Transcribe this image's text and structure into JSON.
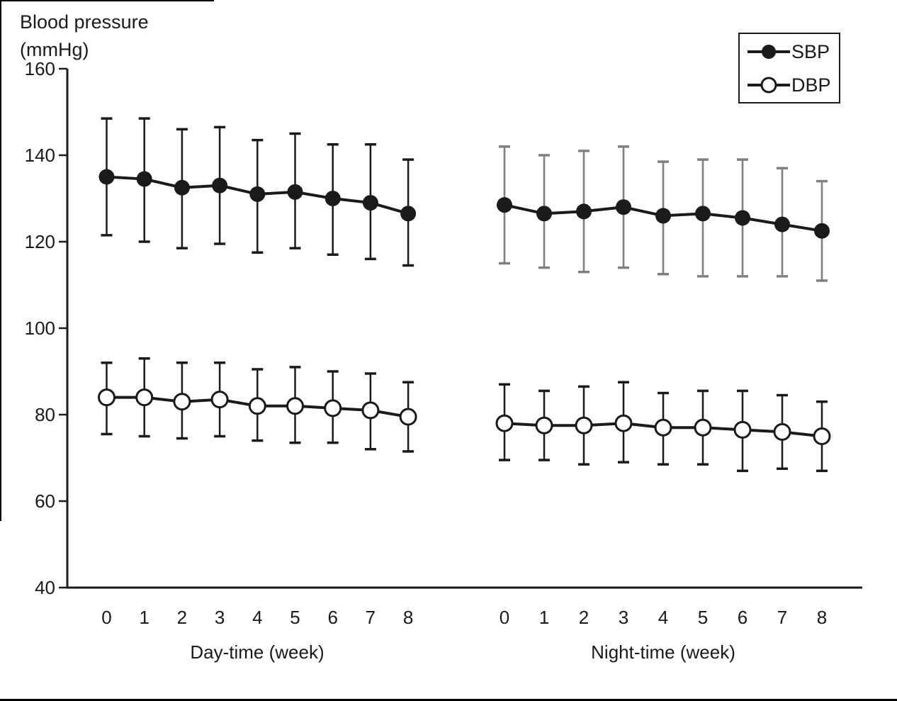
{
  "colors": {
    "ink": "#1a1a1a",
    "night_sbp_errbar": "#7f7f7f",
    "background": "#ffffff",
    "open_marker_fill": "#ffffff"
  },
  "chart_data": {
    "type": "line",
    "title": "Blood pressure (mmHg)",
    "ylabel_lines": [
      "Blood pressure",
      "(mmHg)"
    ],
    "y_axis": {
      "min": 40,
      "max": 160,
      "tick_step": 20,
      "ticks": [
        160,
        140,
        120,
        100,
        80,
        60,
        40
      ]
    },
    "x": [
      0,
      1,
      2,
      3,
      4,
      5,
      6,
      7,
      8
    ],
    "grid": "off",
    "legend_position": "top-right",
    "legend": [
      {
        "label": "SBP",
        "marker": "filled-circle"
      },
      {
        "label": "DBP",
        "marker": "open-circle"
      }
    ],
    "error_bars": "sd-whiskers-with-caps",
    "panels": [
      {
        "name": "Day-time",
        "xlabel": "Day-time (week)",
        "series": [
          {
            "name": "SBP",
            "marker": "filled-circle",
            "errbar_color": "#1a1a1a",
            "values": [
              135,
              134.5,
              132.5,
              133,
              131,
              131.5,
              130,
              129,
              126.5
            ],
            "err_upper": [
              148.5,
              148.5,
              146,
              146.5,
              143.5,
              145,
              142.5,
              142.5,
              139
            ],
            "err_lower": [
              121.5,
              120,
              118.5,
              119.5,
              117.5,
              118.5,
              117,
              116,
              114.5
            ]
          },
          {
            "name": "DBP",
            "marker": "open-circle",
            "errbar_color": "#1a1a1a",
            "values": [
              84,
              84,
              83,
              83.5,
              82,
              82,
              81.5,
              81,
              79.5
            ],
            "err_upper": [
              92,
              93,
              92,
              92,
              90.5,
              91,
              90,
              89.5,
              87.5
            ],
            "err_lower": [
              75.5,
              75,
              74.5,
              75,
              74,
              73.5,
              73.5,
              72,
              71.5
            ]
          }
        ]
      },
      {
        "name": "Night-time",
        "xlabel": "Night-time (week)",
        "series": [
          {
            "name": "SBP",
            "marker": "filled-circle",
            "errbar_color": "#7f7f7f",
            "values": [
              128.5,
              126.5,
              127,
              128,
              126,
              126.5,
              125.5,
              124,
              122.5
            ],
            "err_upper": [
              142,
              140,
              141,
              142,
              138.5,
              139,
              139,
              137,
              134
            ],
            "err_lower": [
              115,
              114,
              113,
              114,
              112.5,
              112,
              112,
              112,
              111
            ]
          },
          {
            "name": "DBP",
            "marker": "open-circle",
            "errbar_color": "#1a1a1a",
            "values": [
              78,
              77.5,
              77.5,
              78,
              77,
              77,
              76.5,
              76,
              75
            ],
            "err_upper": [
              87,
              85.5,
              86.5,
              87.5,
              85,
              85.5,
              85.5,
              84.5,
              83
            ],
            "err_lower": [
              69.5,
              69.5,
              68.5,
              69,
              68.5,
              68.5,
              67,
              67.5,
              67
            ]
          }
        ]
      }
    ]
  }
}
